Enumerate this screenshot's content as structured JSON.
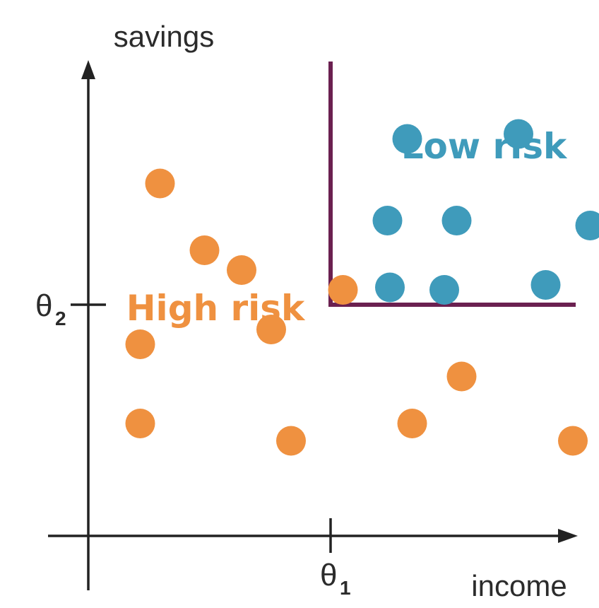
{
  "axes": {
    "y_label": "savings",
    "x_label": "income",
    "theta2_label": "θ",
    "theta2_sub": "2",
    "theta1_label": "θ",
    "theta1_sub": "1"
  },
  "regions": {
    "high_risk_label": "High risk",
    "low_risk_label": "Low risk"
  },
  "colors": {
    "high_risk": "#EF9140",
    "low_risk": "#3F9BBB",
    "boundary": "#6B2050",
    "axis": "#222222"
  },
  "chart_data": {
    "type": "scatter",
    "xlabel": "income",
    "ylabel": "savings",
    "series": [
      {
        "name": "High risk",
        "points": [
          [
            -6.9,
            4.9
          ],
          [
            -5.1,
            2.2
          ],
          [
            -3.6,
            1.4
          ],
          [
            -7.7,
            -1.6
          ],
          [
            -2.4,
            -1.0
          ],
          [
            0.5,
            0.6
          ],
          [
            -7.7,
            -4.8
          ],
          [
            -1.6,
            -5.5
          ],
          [
            3.3,
            -4.8
          ],
          [
            5.3,
            -2.9
          ],
          [
            9.8,
            -5.5
          ]
        ]
      },
      {
        "name": "Low risk",
        "points": [
          [
            3.1,
            6.7
          ],
          [
            7.6,
            6.9
          ],
          [
            2.3,
            3.4
          ],
          [
            5.1,
            3.4
          ],
          [
            10.5,
            3.2
          ],
          [
            2.4,
            0.7
          ],
          [
            4.6,
            0.6
          ],
          [
            8.7,
            0.8
          ]
        ]
      }
    ],
    "boundary": {
      "theta1": 0,
      "theta2": 0
    }
  }
}
